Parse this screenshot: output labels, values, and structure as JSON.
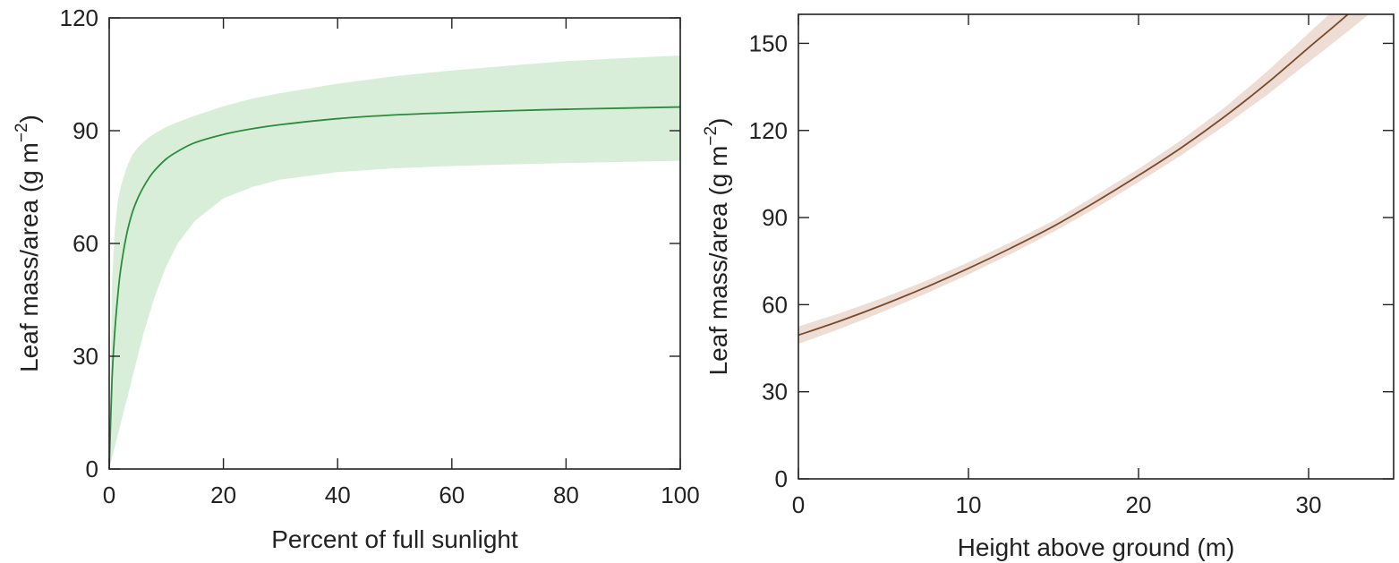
{
  "chart_data": [
    {
      "type": "line",
      "xlabel": "Percent of full sunlight",
      "ylabel": "Leaf mass/area (g m",
      "ylabel_sup": "−2",
      "ylabel_end": ")",
      "xlim": [
        0,
        100
      ],
      "ylim": [
        0,
        120
      ],
      "xticks": [
        0,
        20,
        40,
        60,
        80,
        100
      ],
      "yticks": [
        0,
        30,
        60,
        90,
        120
      ],
      "grid": false,
      "colors": {
        "line": "#2e8b3e",
        "band": "#d9eed9"
      },
      "series": [
        {
          "x": [
            0,
            0.5,
            1,
            1.5,
            2,
            3,
            4,
            5,
            6,
            7,
            8,
            10,
            12,
            15,
            20,
            25,
            30,
            40,
            50,
            60,
            70,
            80,
            90,
            100
          ],
          "y": [
            0,
            24,
            37,
            46,
            53,
            62,
            68,
            72,
            75,
            77.5,
            79.5,
            82.5,
            84.5,
            86.8,
            89,
            90.5,
            91.6,
            93.2,
            94.2,
            94.8,
            95.3,
            95.7,
            96.0,
            96.3
          ],
          "lower": [
            0,
            3,
            6,
            9,
            12,
            18,
            24,
            30,
            36,
            41,
            46,
            54,
            60,
            66,
            72,
            75,
            77,
            79,
            80,
            80.6,
            81,
            81.4,
            81.7,
            82
          ],
          "upper": [
            0,
            50,
            64,
            71,
            75,
            80,
            83.5,
            85.5,
            87,
            88.3,
            89.3,
            91,
            92.3,
            94,
            96.5,
            98.5,
            100,
            102.5,
            104.5,
            106,
            107.3,
            108.5,
            109.3,
            110
          ]
        }
      ]
    },
    {
      "type": "line",
      "xlabel": "Height above ground (m)",
      "ylabel": "Leaf mass/area (g m",
      "ylabel_sup": "−2",
      "ylabel_end": ")",
      "xlim": [
        0,
        35
      ],
      "ylim": [
        0,
        160
      ],
      "xticks": [
        0,
        10,
        20,
        30
      ],
      "yticks": [
        0,
        30,
        60,
        90,
        120,
        150
      ],
      "grid": false,
      "colors": {
        "line": "#7a4a2a",
        "band": "#eeddd4"
      },
      "series": [
        {
          "x": [
            0,
            2.5,
            5,
            7.5,
            10,
            12.5,
            15,
            17.5,
            20,
            22.5,
            25,
            27.5,
            30,
            32.5,
            35
          ],
          "y": [
            49.5,
            54.5,
            60,
            66,
            72.5,
            79.5,
            87,
            95.5,
            104.5,
            114,
            124.5,
            136,
            148.5,
            161,
            175
          ],
          "lower": [
            46.5,
            51.8,
            57.6,
            63.8,
            70.4,
            77.5,
            85.1,
            93.3,
            102.2,
            111.4,
            121.4,
            132,
            143.5,
            155,
            167
          ],
          "upper": [
            52.5,
            57.2,
            62.4,
            68.2,
            74.6,
            81.5,
            88.9,
            97.7,
            106.8,
            116.6,
            127.6,
            140,
            153.5,
            167,
            183
          ]
        }
      ]
    }
  ]
}
